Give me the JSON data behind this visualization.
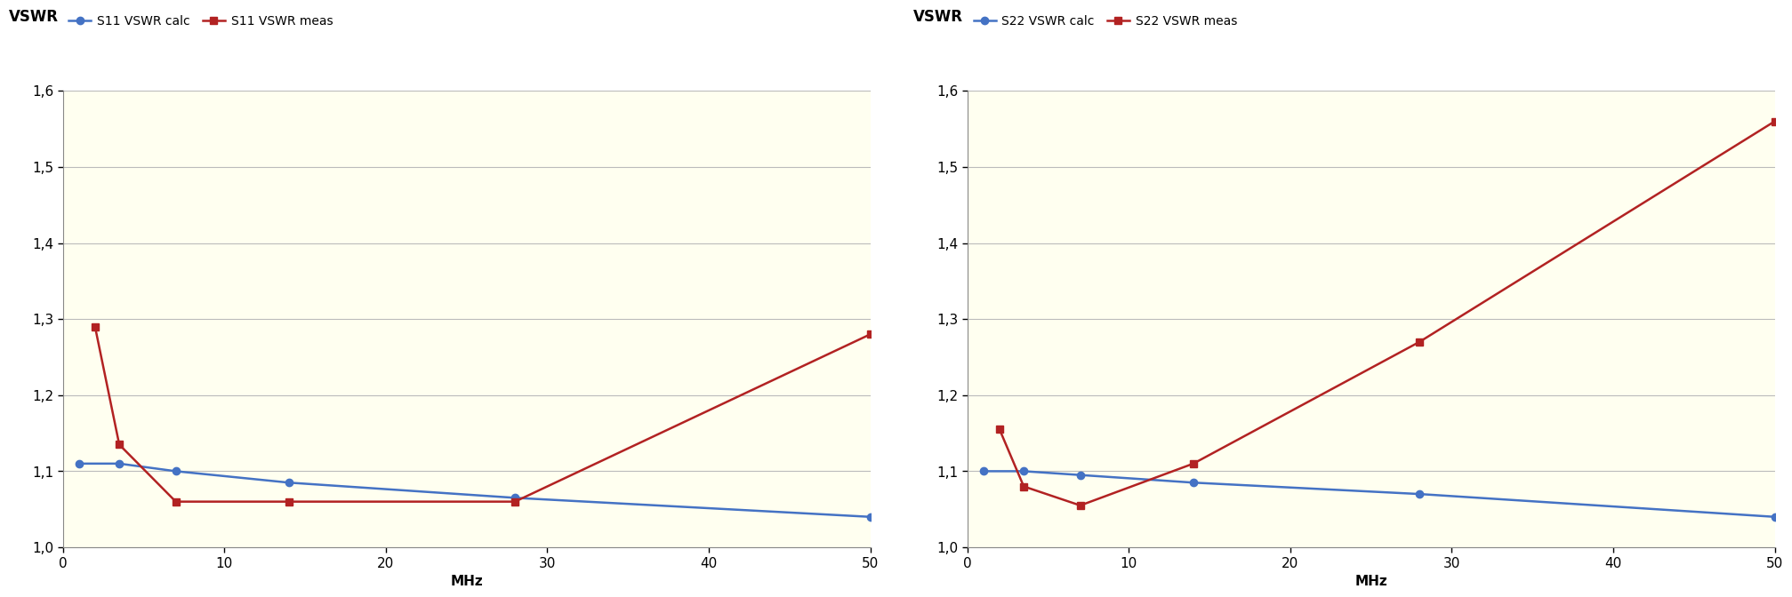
{
  "plot1": {
    "title": "VSWR",
    "xlabel": "MHz",
    "ylim": [
      1.0,
      1.6
    ],
    "xlim": [
      0,
      50
    ],
    "yticks": [
      1.0,
      1.1,
      1.2,
      1.3,
      1.4,
      1.5,
      1.6
    ],
    "xticks": [
      0,
      10,
      20,
      30,
      40,
      50
    ],
    "calc_label": "S11 VSWR calc",
    "meas_label": "S11 VSWR meas",
    "calc_x": [
      1,
      3.5,
      7,
      14,
      28,
      50
    ],
    "calc_y": [
      1.11,
      1.11,
      1.1,
      1.085,
      1.065,
      1.04
    ],
    "meas_x": [
      2,
      3.5,
      7,
      14,
      28,
      50
    ],
    "meas_y": [
      1.29,
      1.135,
      1.06,
      1.06,
      1.06,
      1.28
    ]
  },
  "plot2": {
    "title": "VSWR",
    "xlabel": "MHz",
    "ylim": [
      1.0,
      1.6
    ],
    "xlim": [
      0,
      50
    ],
    "yticks": [
      1.0,
      1.1,
      1.2,
      1.3,
      1.4,
      1.5,
      1.6
    ],
    "xticks": [
      0,
      10,
      20,
      30,
      40,
      50
    ],
    "calc_label": "S22 VSWR calc",
    "meas_label": "S22 VSWR meas",
    "calc_x": [
      1,
      3.5,
      7,
      14,
      28,
      50
    ],
    "calc_y": [
      1.1,
      1.1,
      1.095,
      1.085,
      1.07,
      1.04
    ],
    "meas_x": [
      2,
      3.5,
      7,
      14,
      28,
      50
    ],
    "meas_y": [
      1.155,
      1.08,
      1.055,
      1.11,
      1.27,
      1.56
    ]
  },
  "calc_color": "#4472C4",
  "meas_color": "#B22222",
  "bg_color": "#FFFFF0",
  "grid_color": "#BBBBBB",
  "fig_bg": "#FFFFFF",
  "title_fontsize": 12,
  "label_fontsize": 11,
  "legend_fontsize": 10,
  "tick_fontsize": 11,
  "marker_size": 6,
  "line_width": 1.8
}
